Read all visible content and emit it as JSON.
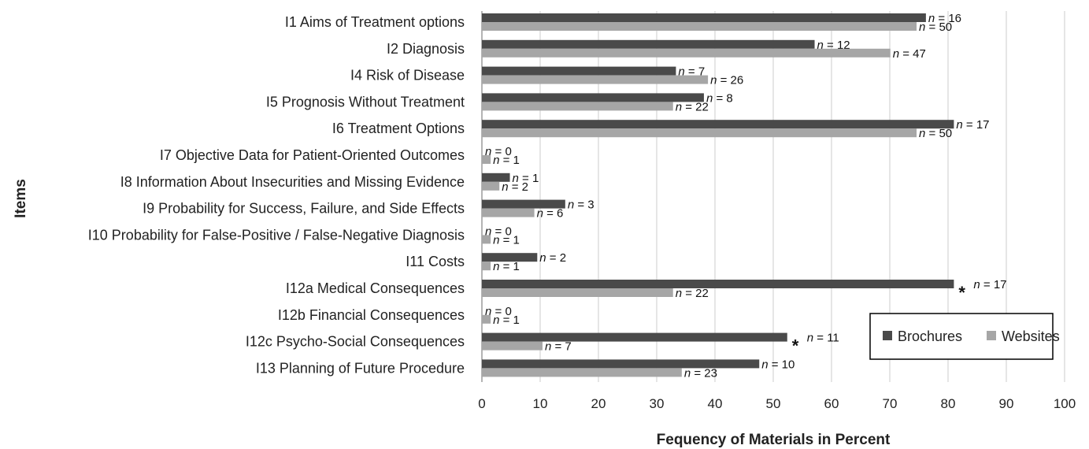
{
  "chart_data": {
    "type": "bar",
    "orientation": "horizontal",
    "title": "",
    "xlabel": "Fequency of Materials in Percent",
    "ylabel": "Items",
    "xlim": [
      0,
      100
    ],
    "xticks": [
      0,
      10,
      20,
      30,
      40,
      50,
      60,
      70,
      80,
      90,
      100
    ],
    "grid": "vertical",
    "legend_position": "bottom-right",
    "categories": [
      "I1 Aims of Treatment options",
      "I2 Diagnosis",
      "I4 Risk of Disease",
      "I5 Prognosis Without Treatment",
      "I6 Treatment Options",
      "I7 Objective Data for Patient-Oriented Outcomes",
      "I8 Information About Insecurities and Missing Evidence",
      "I9 Probability for Success, Failure, and Side Effects",
      "I10 Probability for False-Positive / False-Negative Diagnosis",
      "I11 Costs",
      "I12a Medical Consequences",
      "I12b Financial Consequences",
      "I12c Psycho-Social Consequences",
      "I13 Planning of Future Procedure"
    ],
    "series": [
      {
        "name": "Brochures",
        "color": "#4a4a4a",
        "values": [
          76.2,
          57.1,
          33.3,
          38.1,
          81.0,
          0,
          4.8,
          14.3,
          0,
          9.5,
          81.0,
          0,
          52.4,
          47.6
        ],
        "n_labels": [
          "n = 16",
          "n = 12",
          "n = 7",
          "n = 8",
          "n = 17",
          "n = 0",
          "n = 1",
          "n = 3",
          "n = 0",
          "n = 2",
          "n = 17",
          "n = 0",
          "n = 11",
          "n = 10"
        ]
      },
      {
        "name": "Websites",
        "color": "#a6a6a6",
        "values": [
          74.6,
          70.1,
          38.8,
          32.8,
          74.6,
          1.5,
          3.0,
          9.0,
          1.5,
          1.5,
          32.8,
          1.5,
          10.4,
          34.3
        ],
        "n_labels": [
          "n = 50",
          "n = 47",
          "n = 26",
          "n = 22",
          "n = 50",
          "n = 1",
          "n = 2",
          "n = 6",
          "n = 1",
          "n = 1",
          "n = 22",
          "n = 1",
          "n = 7",
          "n = 23"
        ]
      }
    ],
    "annotations": [
      {
        "category_index": 10,
        "text": "*"
      },
      {
        "category_index": 12,
        "text": "*"
      }
    ]
  }
}
